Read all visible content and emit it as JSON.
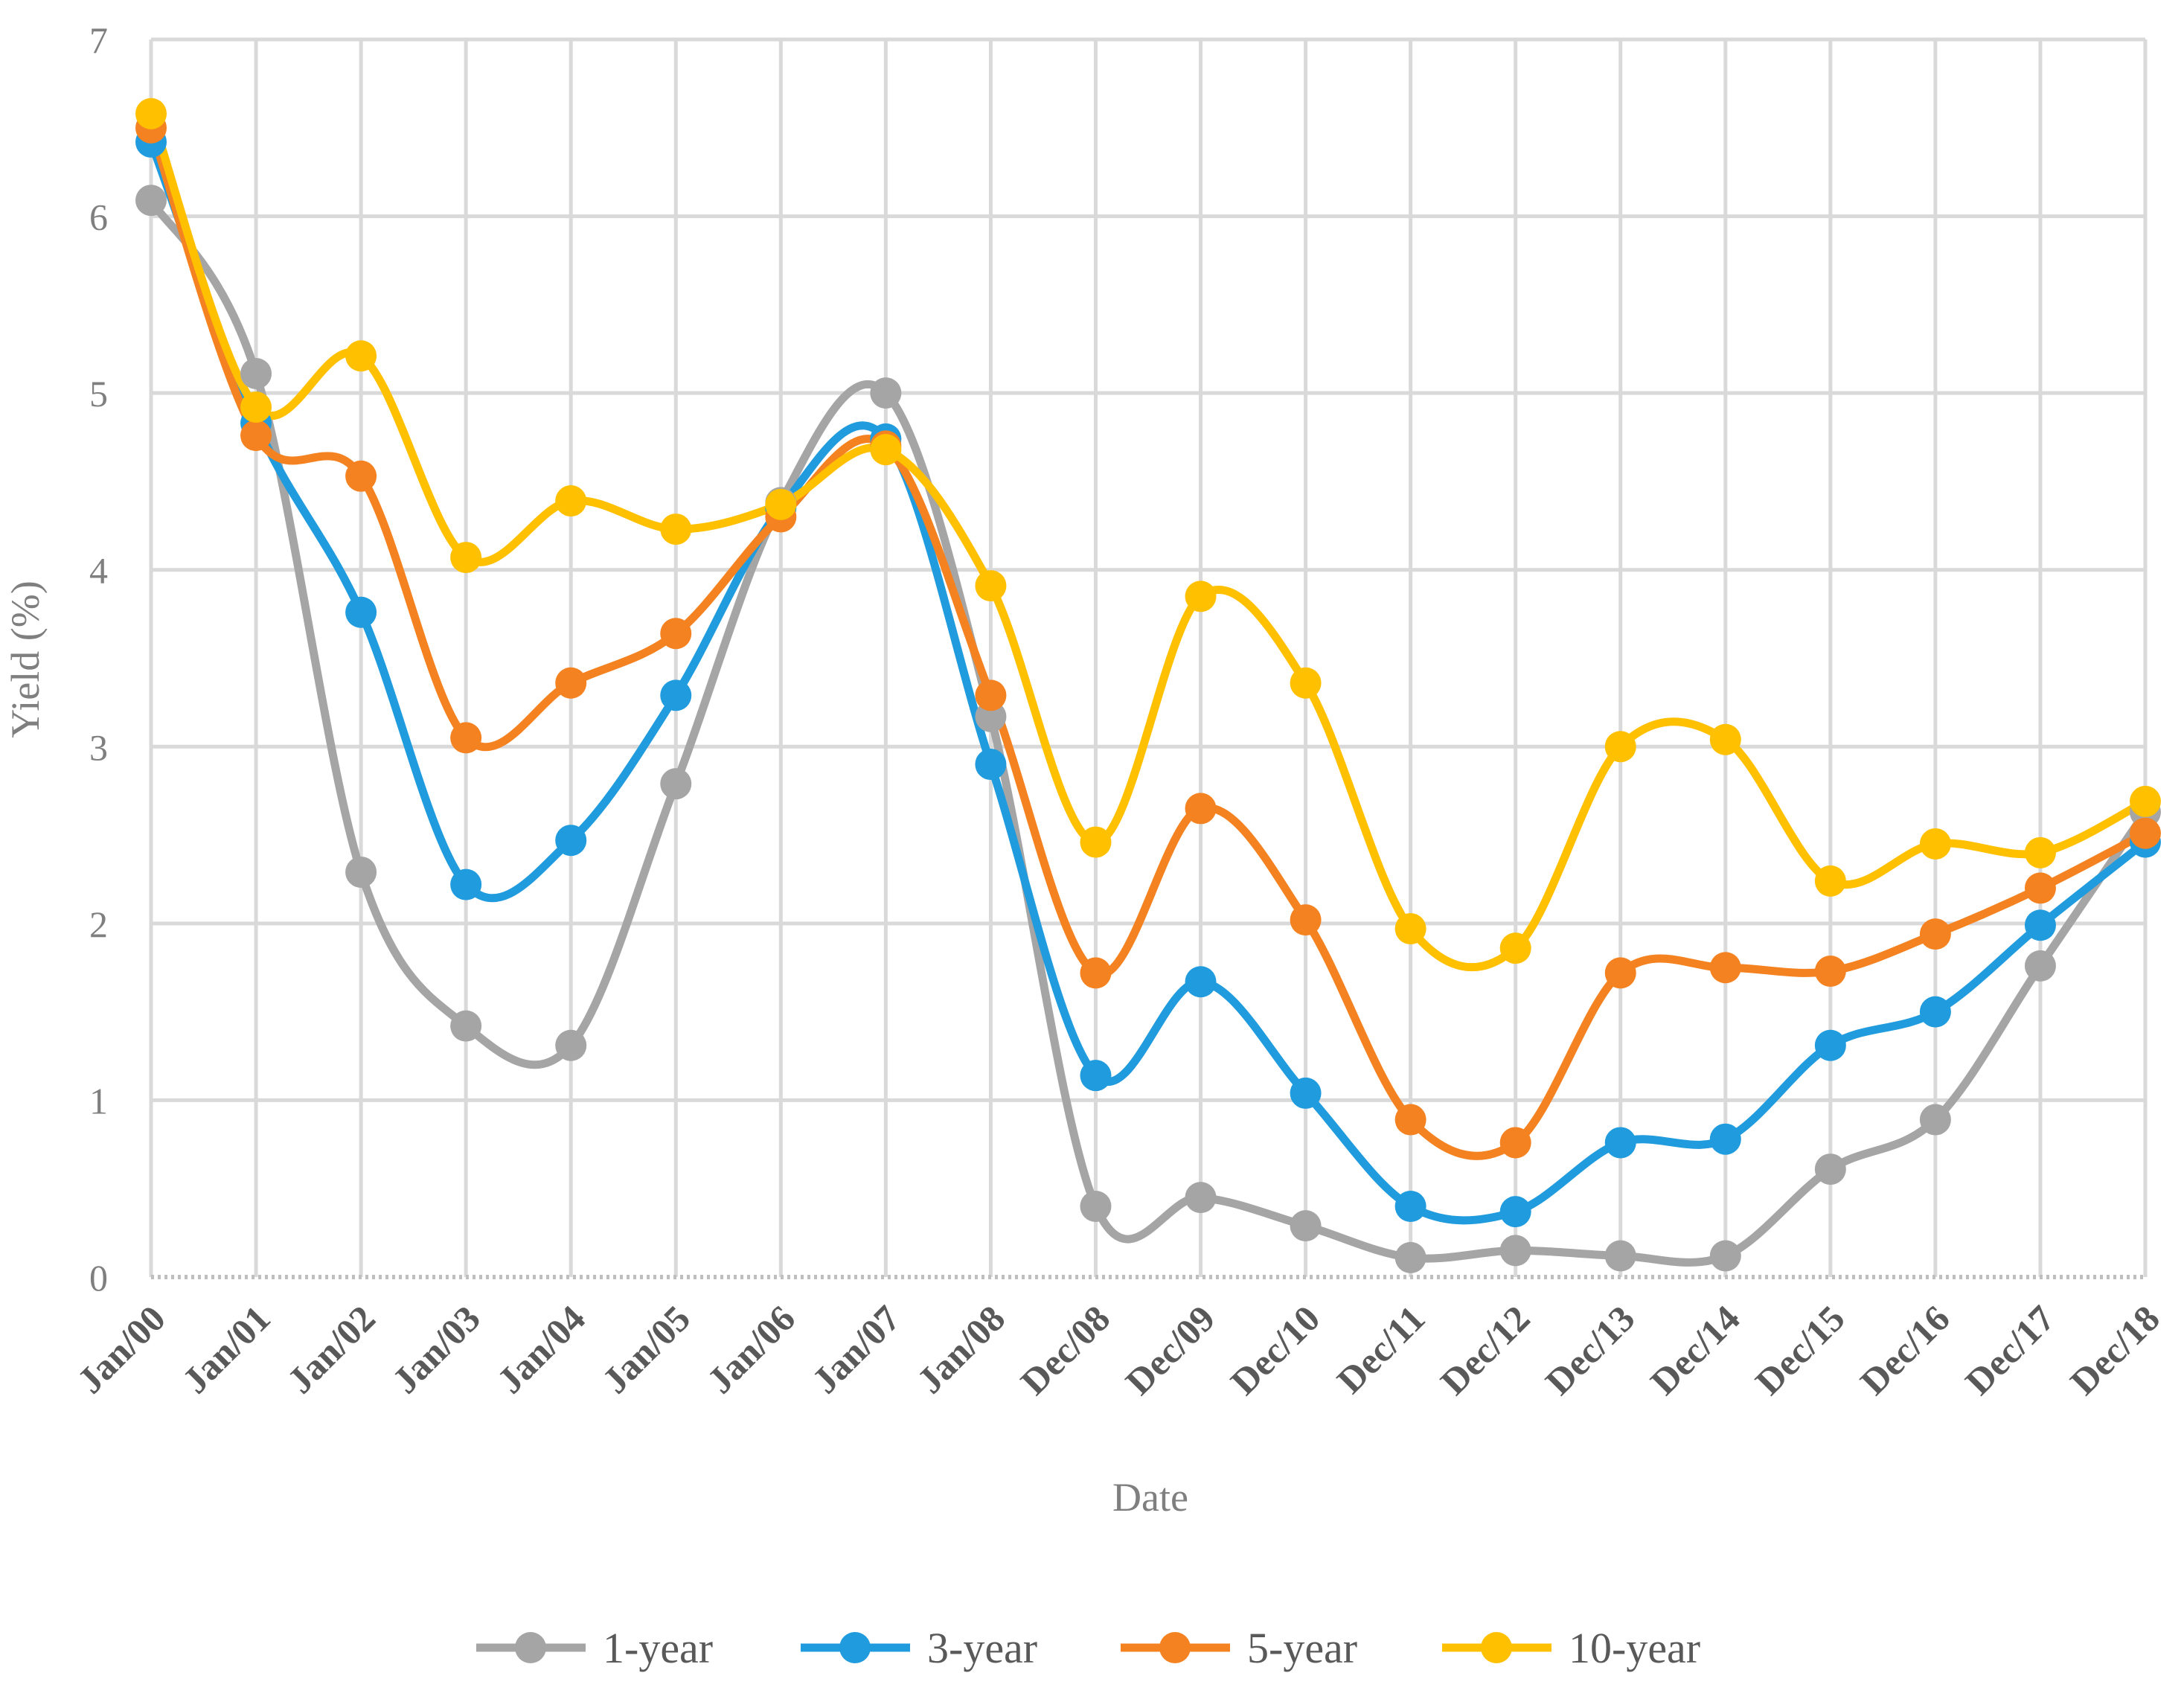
{
  "chart_data": {
    "type": "line",
    "title": "",
    "xlabel": "Date",
    "ylabel": "Yield (%)",
    "ylim": [
      0,
      7
    ],
    "yticks": [
      0,
      1,
      2,
      3,
      4,
      5,
      6,
      7
    ],
    "grid": true,
    "legend_position": "bottom",
    "categories": [
      "Jan/00",
      "Jan/01",
      "Jan/02",
      "Jan/03",
      "Jan/04",
      "Jan/05",
      "Jan/06",
      "Jan/07",
      "Jan/08",
      "Dec/08",
      "Dec/09",
      "Dec/10",
      "Dec/11",
      "Dec/12",
      "Dec/13",
      "Dec/14",
      "Dec/15",
      "Dec/16",
      "Dec/17",
      "Dec/18"
    ],
    "series": [
      {
        "name": "1-year",
        "color": "#a5a5a5",
        "values": [
          6.09,
          5.11,
          2.29,
          1.42,
          1.31,
          2.79,
          4.38,
          5.0,
          3.17,
          0.4,
          0.45,
          0.29,
          0.11,
          0.15,
          0.12,
          0.12,
          0.61,
          0.89,
          1.76,
          2.63
        ]
      },
      {
        "name": "3-year",
        "color": "#1f9bde",
        "values": [
          6.42,
          4.83,
          3.76,
          2.22,
          2.47,
          3.29,
          4.35,
          4.74,
          2.9,
          1.14,
          1.67,
          1.04,
          0.4,
          0.37,
          0.76,
          0.78,
          1.31,
          1.5,
          1.99,
          2.46
        ]
      },
      {
        "name": "5-year",
        "color": "#f58220",
        "values": [
          6.5,
          4.76,
          4.53,
          3.05,
          3.36,
          3.64,
          4.3,
          4.7,
          3.29,
          1.72,
          2.65,
          2.02,
          0.89,
          0.76,
          1.72,
          1.75,
          1.73,
          1.94,
          2.2,
          2.51
        ]
      },
      {
        "name": "10-year",
        "color": "#ffc000",
        "values": [
          6.58,
          4.92,
          5.21,
          4.07,
          4.39,
          4.23,
          4.37,
          4.68,
          3.91,
          2.46,
          3.85,
          3.36,
          1.97,
          1.86,
          3.0,
          3.04,
          2.24,
          2.45,
          2.4,
          2.69
        ]
      }
    ]
  }
}
